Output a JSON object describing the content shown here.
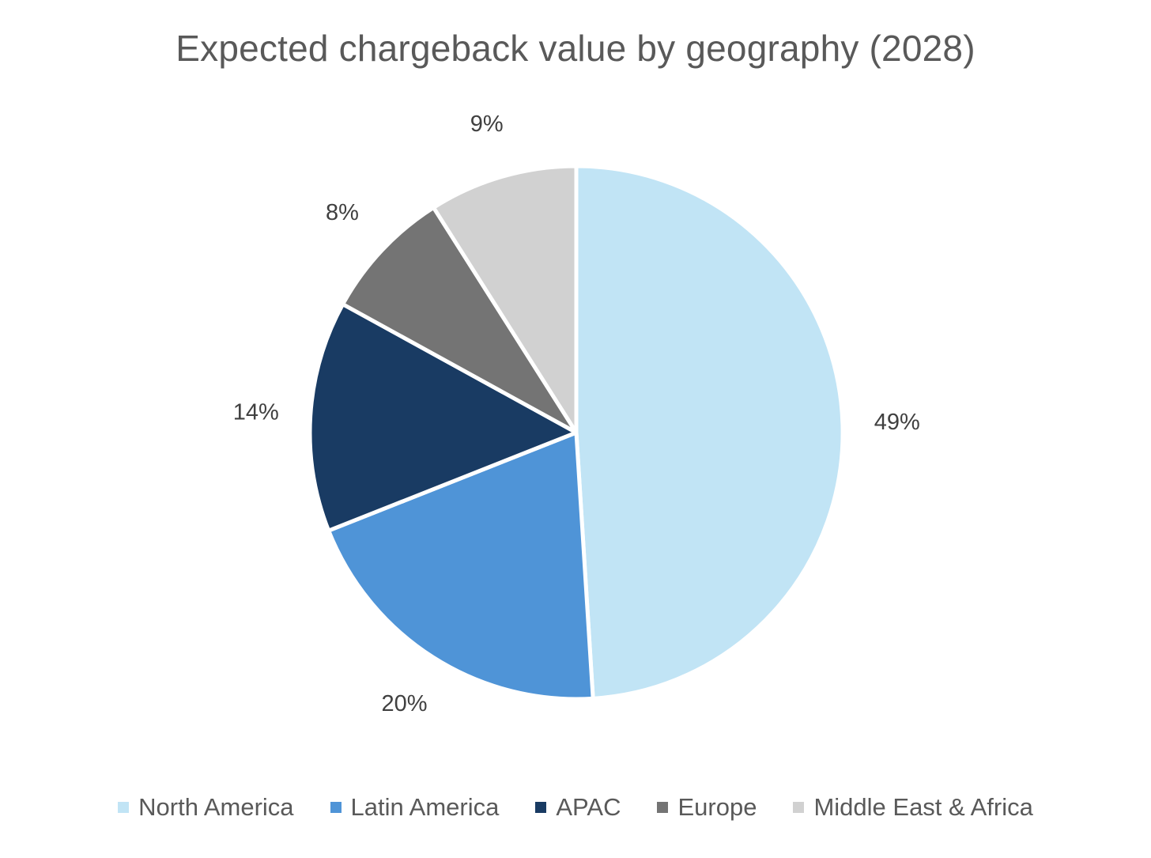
{
  "chart_data": {
    "type": "pie",
    "title": "Expected chargeback value by geography (2028)",
    "categories": [
      "North America",
      "Latin America",
      "APAC",
      "Europe",
      "Middle East & Africa"
    ],
    "values": [
      49,
      20,
      14,
      8,
      9
    ],
    "labels": [
      "49%",
      "20%",
      "14%",
      "8%",
      "9%"
    ],
    "colors": [
      "#c1e4f5",
      "#4f94d7",
      "#193b63",
      "#747474",
      "#d1d1d1"
    ],
    "start_angle_deg": 0,
    "direction": "clockwise",
    "legend_position": "bottom"
  }
}
